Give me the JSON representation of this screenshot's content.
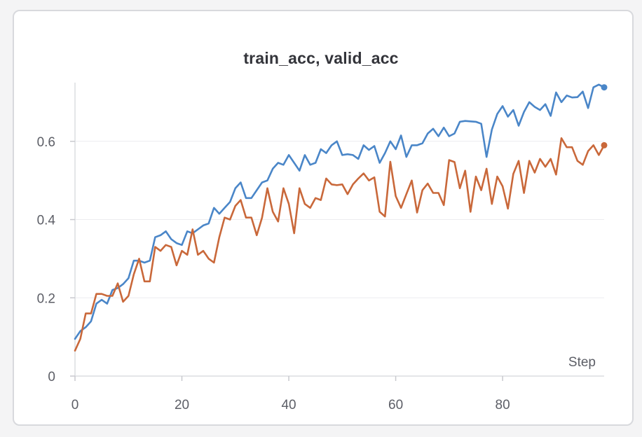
{
  "chart_data": {
    "type": "line",
    "title": "train_acc, valid_acc",
    "xlabel": "Step",
    "ylabel": "",
    "xlim": [
      0,
      99
    ],
    "ylim": [
      0,
      0.75
    ],
    "xticks": [
      0,
      20,
      40,
      60,
      80
    ],
    "yticks": [
      0,
      0.2,
      0.4,
      0.6
    ],
    "ytick_labels": [
      "0",
      "0.2",
      "0.4",
      "0.6"
    ],
    "grid": true,
    "legend": "none",
    "series": [
      {
        "color": "#4a86c8",
        "x_start": 0,
        "values": [
          0.095,
          0.115,
          0.125,
          0.14,
          0.185,
          0.195,
          0.185,
          0.22,
          0.225,
          0.235,
          0.25,
          0.295,
          0.295,
          0.29,
          0.295,
          0.355,
          0.36,
          0.37,
          0.35,
          0.34,
          0.335,
          0.37,
          0.365,
          0.375,
          0.385,
          0.39,
          0.43,
          0.415,
          0.43,
          0.445,
          0.48,
          0.495,
          0.455,
          0.455,
          0.475,
          0.495,
          0.5,
          0.53,
          0.545,
          0.54,
          0.565,
          0.545,
          0.525,
          0.565,
          0.54,
          0.545,
          0.58,
          0.57,
          0.59,
          0.6,
          0.565,
          0.567,
          0.565,
          0.555,
          0.59,
          0.578,
          0.588,
          0.545,
          0.57,
          0.6,
          0.58,
          0.615,
          0.56,
          0.59,
          0.59,
          0.595,
          0.62,
          0.632,
          0.613,
          0.635,
          0.613,
          0.62,
          0.65,
          0.652,
          0.651,
          0.65,
          0.645,
          0.56,
          0.63,
          0.67,
          0.69,
          0.663,
          0.68,
          0.64,
          0.675,
          0.7,
          0.688,
          0.68,
          0.695,
          0.665,
          0.725,
          0.7,
          0.717,
          0.712,
          0.713,
          0.727,
          0.685,
          0.738,
          0.745,
          0.738
        ]
      },
      {
        "color": "#c9683a",
        "x_start": 0,
        "values": [
          0.065,
          0.095,
          0.16,
          0.16,
          0.21,
          0.21,
          0.205,
          0.205,
          0.237,
          0.19,
          0.205,
          0.26,
          0.3,
          0.242,
          0.242,
          0.33,
          0.32,
          0.335,
          0.33,
          0.283,
          0.32,
          0.31,
          0.375,
          0.31,
          0.32,
          0.3,
          0.29,
          0.355,
          0.405,
          0.4,
          0.435,
          0.45,
          0.405,
          0.405,
          0.36,
          0.405,
          0.48,
          0.42,
          0.395,
          0.48,
          0.44,
          0.365,
          0.48,
          0.44,
          0.43,
          0.455,
          0.45,
          0.505,
          0.49,
          0.488,
          0.49,
          0.465,
          0.49,
          0.505,
          0.518,
          0.5,
          0.508,
          0.42,
          0.408,
          0.548,
          0.46,
          0.43,
          0.465,
          0.5,
          0.418,
          0.475,
          0.492,
          0.468,
          0.468,
          0.437,
          0.552,
          0.547,
          0.48,
          0.525,
          0.42,
          0.51,
          0.475,
          0.53,
          0.44,
          0.51,
          0.485,
          0.428,
          0.517,
          0.55,
          0.468,
          0.55,
          0.52,
          0.555,
          0.535,
          0.555,
          0.515,
          0.608,
          0.585,
          0.585,
          0.55,
          0.54,
          0.575,
          0.59,
          0.565,
          0.59
        ]
      }
    ]
  }
}
